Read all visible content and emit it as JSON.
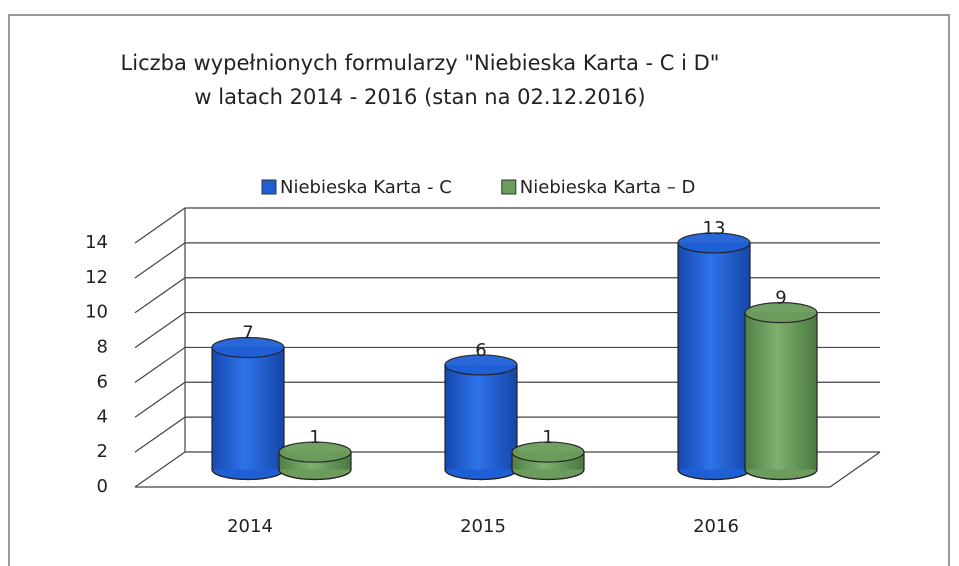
{
  "chart_data": {
    "type": "bar3d",
    "title": [
      "Liczba wypełnionych formularzy \"Niebieska Karta - C i D\"",
      "w latach 2014 - 2016 (stan na 02.12.2016)"
    ],
    "categories": [
      "2014",
      "2015",
      "2016"
    ],
    "series": [
      {
        "name": "Niebieska Karta - C",
        "color": "#1f5fd6",
        "values": [
          7,
          6,
          13
        ]
      },
      {
        "name": "Niebieska Karta – D",
        "color": "#6b9c5c",
        "values": [
          1,
          1,
          9
        ]
      }
    ],
    "ylim": [
      0,
      14
    ],
    "yticks": [
      0,
      2,
      4,
      6,
      8,
      10,
      12,
      14
    ],
    "grid": true,
    "legend": "top"
  }
}
